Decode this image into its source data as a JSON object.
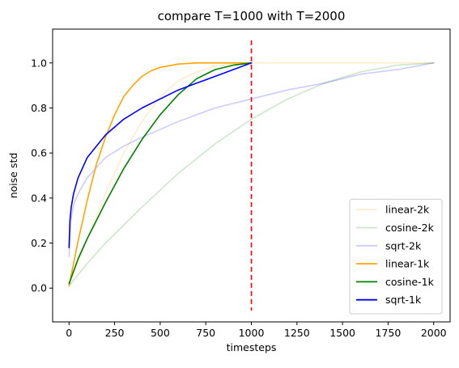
{
  "chart_data": {
    "type": "line",
    "title": "compare T=1000 with T=2000",
    "xlabel": "timesteps",
    "ylabel": "noise std",
    "xlim": [
      -90,
      2090
    ],
    "ylim": [
      -0.15,
      1.15
    ],
    "xticks": [
      0,
      250,
      500,
      750,
      1000,
      1250,
      1500,
      1750,
      2000
    ],
    "yticks": [
      0.0,
      0.2,
      0.4,
      0.6,
      0.8,
      1.0
    ],
    "xtick_labels": [
      "0",
      "250",
      "500",
      "750",
      "1000",
      "1250",
      "1500",
      "1750",
      "2000"
    ],
    "ytick_labels": [
      "0.0",
      "0.2",
      "0.4",
      "0.6",
      "0.8",
      "1.0"
    ],
    "legend_position": "lower-right",
    "series": [
      {
        "name": "linear-2k",
        "color": "#ffa500",
        "alpha": 0.2,
        "x": [
          0,
          100,
          200,
          300,
          400,
          500,
          600,
          700,
          800,
          900,
          1000,
          1200,
          1400,
          1600,
          1800,
          2000
        ],
        "y": [
          0.01,
          0.22,
          0.42,
          0.6,
          0.74,
          0.85,
          0.92,
          0.96,
          0.985,
          0.995,
          1.0,
          1.0,
          1.0,
          1.0,
          1.0,
          1.0
        ]
      },
      {
        "name": "cosine-2k",
        "color": "#008000",
        "alpha": 0.2,
        "x": [
          0,
          100,
          200,
          400,
          600,
          800,
          1000,
          1200,
          1400,
          1600,
          1800,
          2000
        ],
        "y": [
          0.01,
          0.11,
          0.2,
          0.36,
          0.51,
          0.64,
          0.75,
          0.84,
          0.91,
          0.96,
          0.99,
          1.0
        ]
      },
      {
        "name": "sqrt-2k",
        "color": "#0000ff",
        "alpha": 0.2,
        "x": [
          0,
          10,
          25,
          50,
          100,
          200,
          300,
          400,
          600,
          800,
          1000,
          1200,
          1400,
          1600,
          1800,
          2000
        ],
        "y": [
          0.14,
          0.3,
          0.37,
          0.42,
          0.49,
          0.58,
          0.63,
          0.67,
          0.74,
          0.8,
          0.84,
          0.88,
          0.91,
          0.95,
          0.97,
          1.0
        ]
      },
      {
        "name": "linear-1k",
        "color": "#ffa500",
        "alpha": 1.0,
        "x": [
          0,
          50,
          100,
          150,
          200,
          250,
          300,
          350,
          400,
          450,
          500,
          600,
          700,
          800,
          900,
          1000
        ],
        "y": [
          0.01,
          0.21,
          0.39,
          0.55,
          0.67,
          0.77,
          0.85,
          0.9,
          0.94,
          0.965,
          0.98,
          0.995,
          1.0,
          1.0,
          1.0,
          1.0
        ]
      },
      {
        "name": "cosine-1k",
        "color": "#008000",
        "alpha": 1.0,
        "x": [
          0,
          50,
          100,
          200,
          300,
          400,
          500,
          600,
          700,
          800,
          900,
          1000
        ],
        "y": [
          0.02,
          0.13,
          0.22,
          0.38,
          0.53,
          0.66,
          0.77,
          0.86,
          0.93,
          0.97,
          0.99,
          1.0
        ]
      },
      {
        "name": "sqrt-1k",
        "color": "#0000ff",
        "alpha": 1.0,
        "x": [
          0,
          5,
          12,
          25,
          50,
          100,
          200,
          300,
          400,
          500,
          600,
          700,
          800,
          900,
          1000
        ],
        "y": [
          0.18,
          0.3,
          0.36,
          0.42,
          0.49,
          0.58,
          0.68,
          0.75,
          0.8,
          0.84,
          0.88,
          0.91,
          0.94,
          0.97,
          1.0
        ]
      }
    ],
    "vline": {
      "x": 1000,
      "ymin": -0.1,
      "ymax": 1.1,
      "color": "#ff0000",
      "style": "dashed"
    }
  }
}
